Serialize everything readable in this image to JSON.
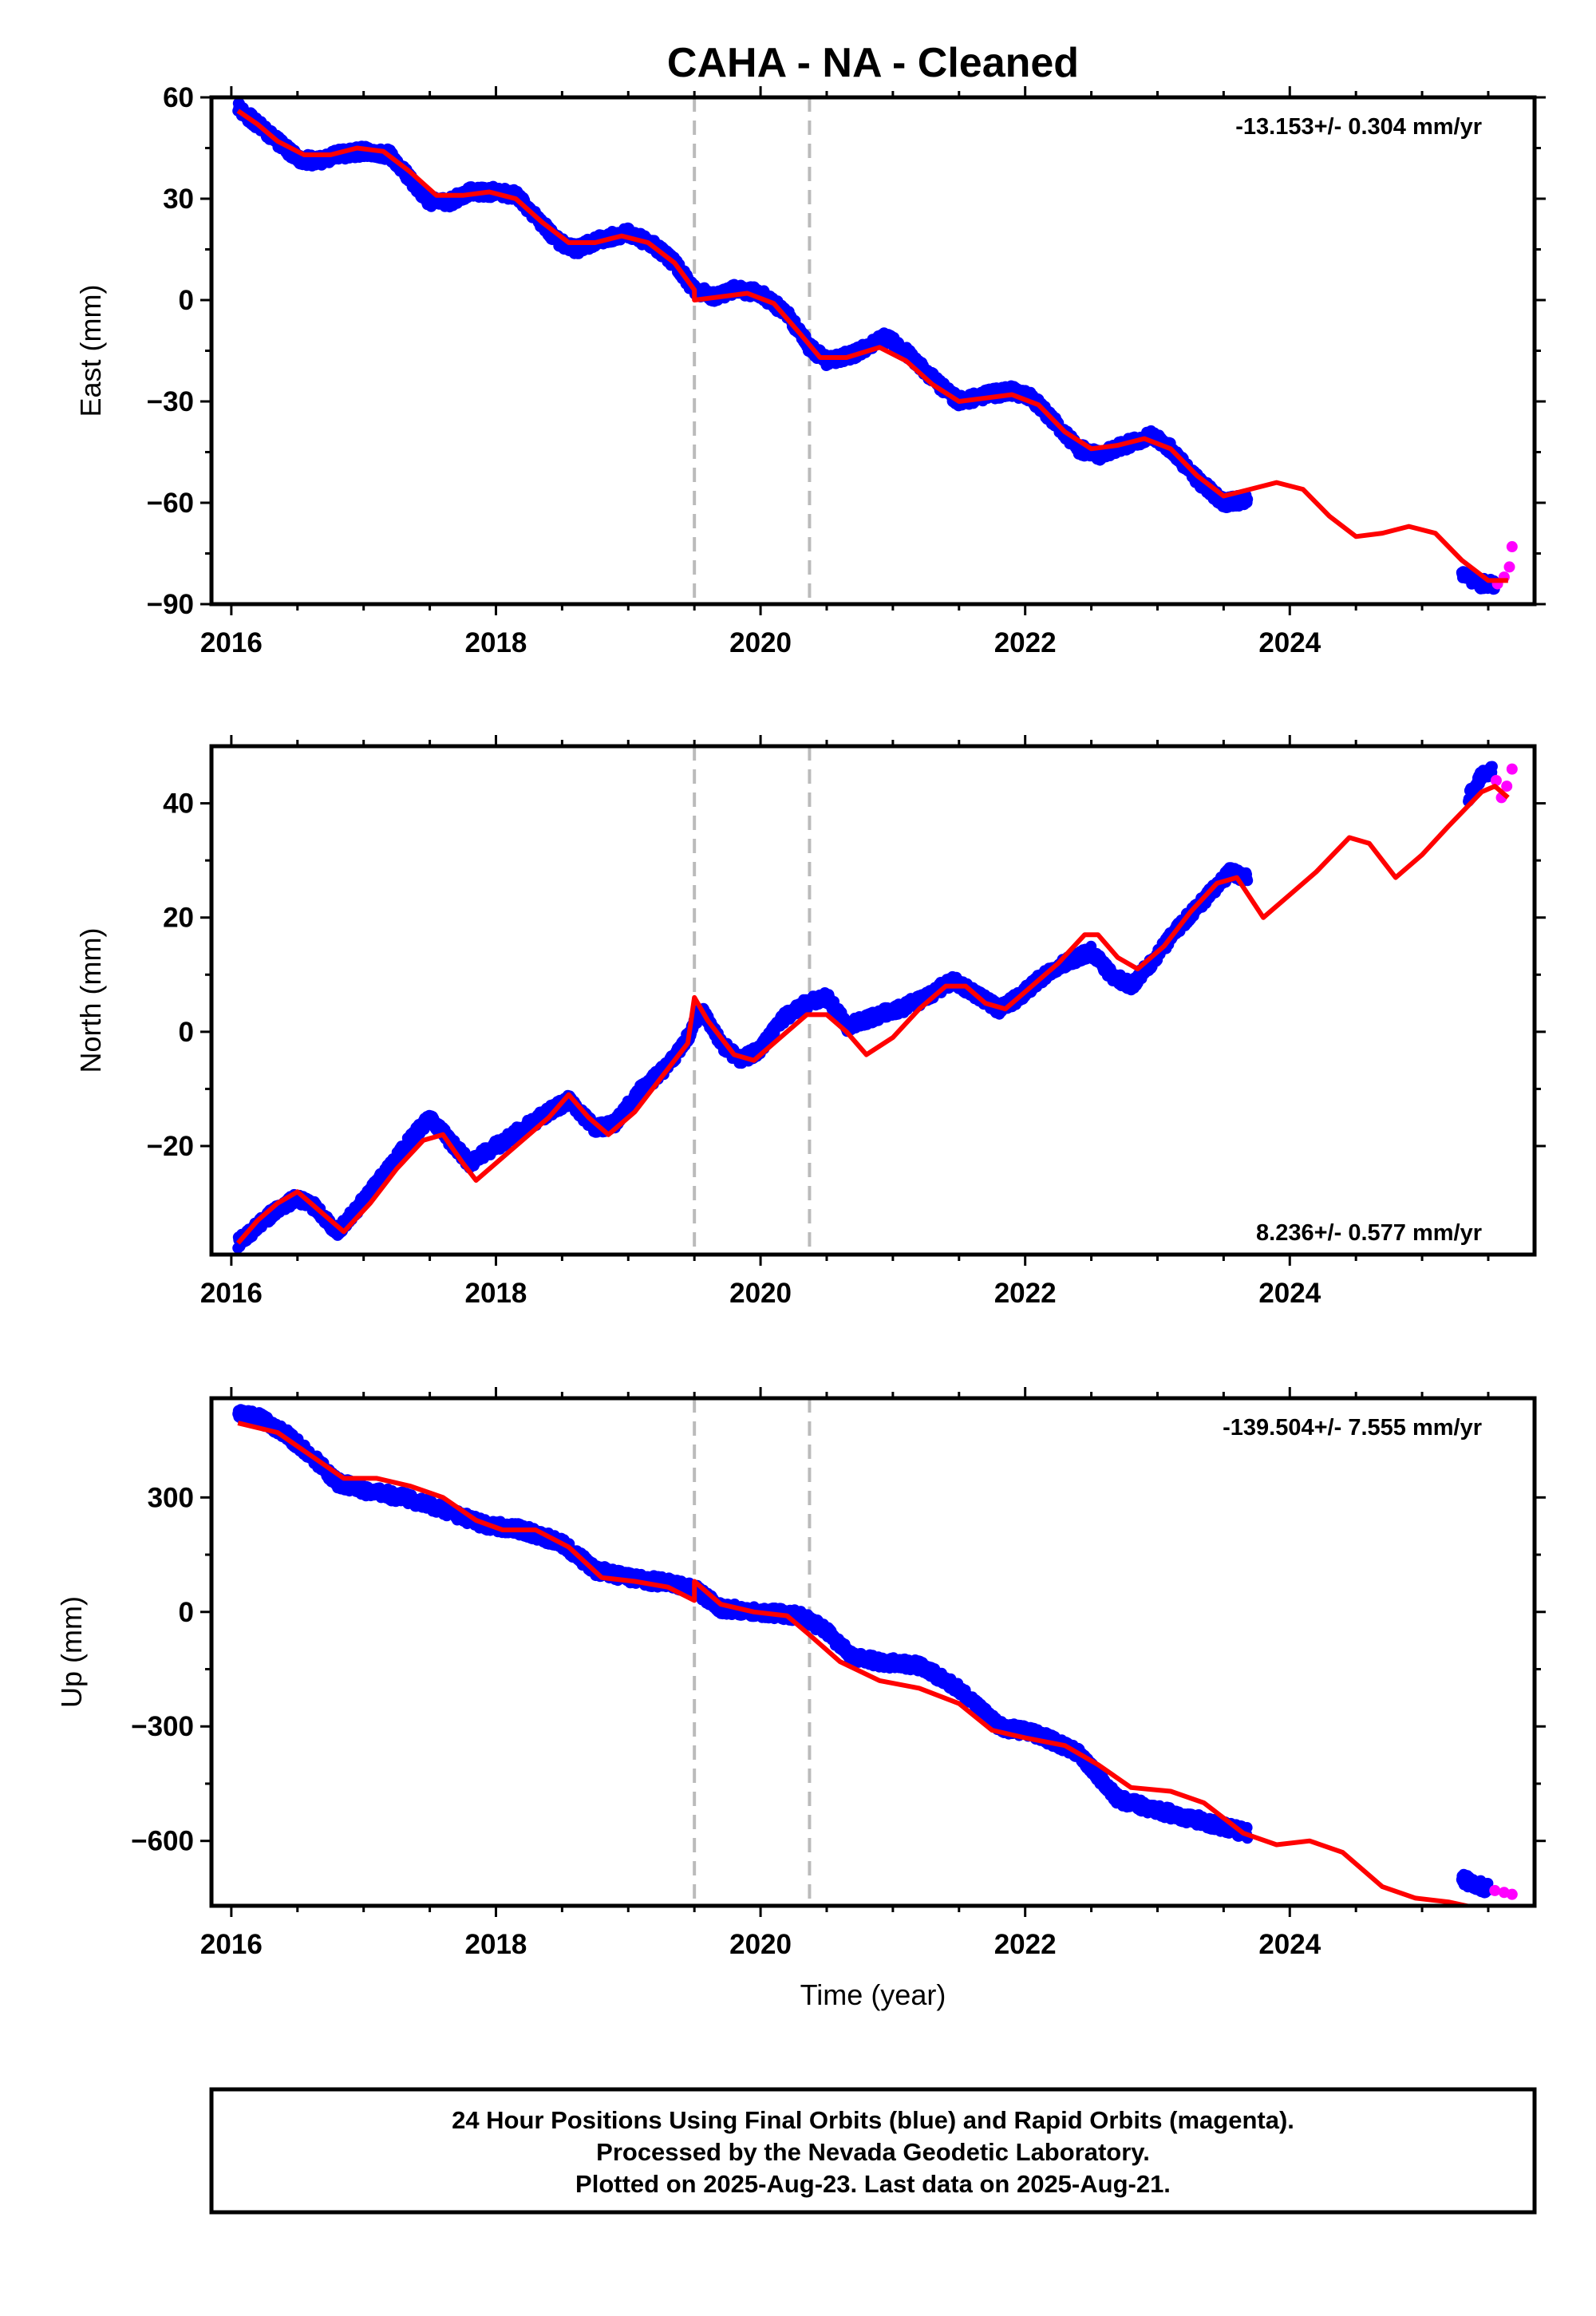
{
  "title": "CAHA  - NA - Cleaned",
  "colors": {
    "final_orbits": "#0000ff",
    "rapid_orbits": "#ff00ff",
    "model": "#ff0000",
    "event_lines": "#bbbbbb"
  },
  "footer": {
    "line1": "24 Hour Positions Using Final Orbits (blue) and Rapid Orbits (magenta).",
    "line2": "Processed by the Nevada Geodetic Laboratory.",
    "line3": "Plotted on 2025-Aug-23. Last data on 2025-Aug-21."
  },
  "chart_data": [
    {
      "type": "scatter",
      "panel": "east",
      "ylabel": "East (mm)",
      "xlabel": "",
      "xlim": [
        2015.85,
        2025.85
      ],
      "ylim": [
        -90,
        60
      ],
      "xticks": [
        2016,
        2018,
        2020,
        2022,
        2024
      ],
      "xtick_labels": [
        "2016",
        "2018",
        "2020",
        "2022",
        "2024"
      ],
      "yticks": [
        60,
        30,
        0,
        -30,
        -60,
        -90
      ],
      "ytick_labels": [
        "60",
        "30",
        "0",
        "−30",
        "−60",
        "−90"
      ],
      "rate_label": "-13.153+/- 0.304 mm/yr",
      "rate_position": "top-right",
      "event_lines": [
        2019.5,
        2020.37
      ],
      "final_orbit_series": [
        [
          2016.05,
          57
        ],
        [
          2016.2,
          52
        ],
        [
          2016.35,
          47
        ],
        [
          2016.5,
          42
        ],
        [
          2016.65,
          41
        ],
        [
          2016.8,
          43
        ],
        [
          2017.0,
          44
        ],
        [
          2017.2,
          43
        ],
        [
          2017.35,
          36
        ],
        [
          2017.5,
          29
        ],
        [
          2017.65,
          29
        ],
        [
          2017.8,
          32
        ],
        [
          2018.0,
          32
        ],
        [
          2018.15,
          31
        ],
        [
          2018.3,
          25
        ],
        [
          2018.45,
          18
        ],
        [
          2018.6,
          15
        ],
        [
          2018.8,
          18
        ],
        [
          2019.0,
          20
        ],
        [
          2019.2,
          16
        ],
        [
          2019.35,
          11
        ],
        [
          2019.5,
          3
        ],
        [
          2019.65,
          1
        ],
        [
          2019.8,
          3
        ],
        [
          2020.0,
          2
        ],
        [
          2020.2,
          -4
        ],
        [
          2020.37,
          -14
        ],
        [
          2020.5,
          -18
        ],
        [
          2020.7,
          -16
        ],
        [
          2020.95,
          -11
        ],
        [
          2021.15,
          -17
        ],
        [
          2021.35,
          -25
        ],
        [
          2021.5,
          -30
        ],
        [
          2021.7,
          -28
        ],
        [
          2021.9,
          -27
        ],
        [
          2022.05,
          -29
        ],
        [
          2022.2,
          -35
        ],
        [
          2022.4,
          -44
        ],
        [
          2022.55,
          -46
        ],
        [
          2022.75,
          -43
        ],
        [
          2022.95,
          -40
        ],
        [
          2023.1,
          -44
        ],
        [
          2023.3,
          -53
        ],
        [
          2023.5,
          -60
        ],
        [
          2023.68,
          -59
        ],
        [
          2025.3,
          -81
        ],
        [
          2025.45,
          -84
        ],
        [
          2025.55,
          -84
        ]
      ],
      "rapid_orbit_series": [
        [
          2025.57,
          -84
        ],
        [
          2025.62,
          -82
        ],
        [
          2025.66,
          -79
        ],
        [
          2025.68,
          -73
        ]
      ],
      "model_series": [
        [
          2016.05,
          56
        ],
        [
          2016.2,
          52
        ],
        [
          2016.35,
          47
        ],
        [
          2016.55,
          43
        ],
        [
          2016.75,
          43
        ],
        [
          2016.95,
          45
        ],
        [
          2017.15,
          44
        ],
        [
          2017.35,
          38
        ],
        [
          2017.55,
          31
        ],
        [
          2017.75,
          31
        ],
        [
          2017.95,
          32
        ],
        [
          2018.15,
          30
        ],
        [
          2018.35,
          23
        ],
        [
          2018.55,
          17
        ],
        [
          2018.75,
          17
        ],
        [
          2018.95,
          19
        ],
        [
          2019.15,
          17
        ],
        [
          2019.35,
          11
        ],
        [
          2019.5,
          3
        ],
        [
          2019.5,
          0
        ],
        [
          2019.7,
          1
        ],
        [
          2019.9,
          2
        ],
        [
          2020.1,
          -1
        ],
        [
          2020.3,
          -10
        ],
        [
          2020.45,
          -17
        ],
        [
          2020.65,
          -17
        ],
        [
          2020.9,
          -14
        ],
        [
          2021.1,
          -18
        ],
        [
          2021.3,
          -25
        ],
        [
          2021.5,
          -30
        ],
        [
          2021.7,
          -29
        ],
        [
          2021.9,
          -28
        ],
        [
          2022.1,
          -31
        ],
        [
          2022.3,
          -39
        ],
        [
          2022.5,
          -44
        ],
        [
          2022.7,
          -43
        ],
        [
          2022.9,
          -41
        ],
        [
          2023.1,
          -44
        ],
        [
          2023.3,
          -52
        ],
        [
          2023.5,
          -58
        ],
        [
          2023.7,
          -56
        ],
        [
          2023.9,
          -54
        ],
        [
          2024.1,
          -56
        ],
        [
          2024.3,
          -64
        ],
        [
          2024.5,
          -70
        ],
        [
          2024.7,
          -69
        ],
        [
          2024.9,
          -67
        ],
        [
          2025.1,
          -69
        ],
        [
          2025.3,
          -77
        ],
        [
          2025.5,
          -83
        ],
        [
          2025.65,
          -83
        ]
      ]
    },
    {
      "type": "scatter",
      "panel": "north",
      "ylabel": "North (mm)",
      "xlabel": "",
      "xlim": [
        2015.85,
        2025.85
      ],
      "ylim": [
        -39,
        50
      ],
      "xticks": [
        2016,
        2018,
        2020,
        2022,
        2024
      ],
      "xtick_labels": [
        "2016",
        "2018",
        "2020",
        "2022",
        "2024"
      ],
      "yticks": [
        40,
        20,
        0,
        -20
      ],
      "ytick_labels": [
        "40",
        "20",
        "0",
        "−20"
      ],
      "rate_label": "8.236+/- 0.577 mm/yr",
      "rate_position": "bottom-right",
      "event_lines": [
        2019.5,
        2020.37
      ],
      "final_orbit_series": [
        [
          2016.05,
          -37
        ],
        [
          2016.2,
          -34
        ],
        [
          2016.35,
          -31
        ],
        [
          2016.5,
          -29
        ],
        [
          2016.65,
          -31
        ],
        [
          2016.8,
          -35
        ],
        [
          2016.95,
          -31
        ],
        [
          2017.15,
          -25
        ],
        [
          2017.35,
          -19
        ],
        [
          2017.5,
          -15
        ],
        [
          2017.65,
          -19
        ],
        [
          2017.8,
          -23
        ],
        [
          2018.0,
          -20
        ],
        [
          2018.2,
          -17
        ],
        [
          2018.4,
          -14
        ],
        [
          2018.55,
          -12
        ],
        [
          2018.75,
          -17
        ],
        [
          2018.9,
          -16
        ],
        [
          2019.1,
          -10
        ],
        [
          2019.3,
          -6
        ],
        [
          2019.45,
          -1
        ],
        [
          2019.55,
          4
        ],
        [
          2019.7,
          -2
        ],
        [
          2019.85,
          -5
        ],
        [
          2020.0,
          -3
        ],
        [
          2020.15,
          2
        ],
        [
          2020.35,
          5
        ],
        [
          2020.5,
          6
        ],
        [
          2020.6,
          3
        ],
        [
          2020.65,
          1
        ],
        [
          2020.9,
          3
        ],
        [
          2021.05,
          4
        ],
        [
          2021.25,
          6
        ],
        [
          2021.45,
          9
        ],
        [
          2021.6,
          7
        ],
        [
          2021.8,
          4
        ],
        [
          2021.95,
          6
        ],
        [
          2022.1,
          9
        ],
        [
          2022.3,
          12
        ],
        [
          2022.5,
          14
        ],
        [
          2022.65,
          10
        ],
        [
          2022.8,
          8
        ],
        [
          2022.95,
          12
        ],
        [
          2023.15,
          18
        ],
        [
          2023.35,
          23
        ],
        [
          2023.55,
          28
        ],
        [
          2023.68,
          27
        ],
        [
          2025.35,
          41
        ],
        [
          2025.45,
          45
        ],
        [
          2025.53,
          46
        ]
      ],
      "rapid_orbit_series": [
        [
          2025.56,
          44
        ],
        [
          2025.6,
          41
        ],
        [
          2025.64,
          43
        ],
        [
          2025.68,
          46
        ]
      ],
      "model_series": [
        [
          2016.05,
          -37
        ],
        [
          2016.2,
          -33
        ],
        [
          2016.35,
          -30
        ],
        [
          2016.5,
          -28
        ],
        [
          2016.7,
          -32
        ],
        [
          2016.85,
          -35
        ],
        [
          2017.05,
          -30
        ],
        [
          2017.25,
          -24
        ],
        [
          2017.45,
          -19
        ],
        [
          2017.6,
          -18
        ],
        [
          2017.75,
          -23
        ],
        [
          2017.85,
          -26
        ],
        [
          2018.0,
          -23
        ],
        [
          2018.2,
          -19
        ],
        [
          2018.4,
          -15
        ],
        [
          2018.55,
          -11
        ],
        [
          2018.7,
          -15
        ],
        [
          2018.85,
          -18
        ],
        [
          2019.05,
          -14
        ],
        [
          2019.25,
          -8
        ],
        [
          2019.45,
          -2
        ],
        [
          2019.5,
          6
        ],
        [
          2019.6,
          2
        ],
        [
          2019.8,
          -4
        ],
        [
          2019.95,
          -5
        ],
        [
          2020.15,
          -1
        ],
        [
          2020.35,
          3
        ],
        [
          2020.5,
          3
        ],
        [
          2020.65,
          0
        ],
        [
          2020.8,
          -4
        ],
        [
          2021.0,
          -1
        ],
        [
          2021.2,
          4
        ],
        [
          2021.4,
          8
        ],
        [
          2021.55,
          8
        ],
        [
          2021.7,
          5
        ],
        [
          2021.85,
          4
        ],
        [
          2022.05,
          8
        ],
        [
          2022.25,
          12
        ],
        [
          2022.45,
          17
        ],
        [
          2022.55,
          17
        ],
        [
          2022.7,
          13
        ],
        [
          2022.85,
          11
        ],
        [
          2023.05,
          15
        ],
        [
          2023.25,
          21
        ],
        [
          2023.45,
          26
        ],
        [
          2023.6,
          27
        ],
        [
          2023.8,
          20
        ],
        [
          2024.0,
          24
        ],
        [
          2024.2,
          28
        ],
        [
          2024.45,
          34
        ],
        [
          2024.6,
          33
        ],
        [
          2024.8,
          27
        ],
        [
          2025.0,
          31
        ],
        [
          2025.2,
          36
        ],
        [
          2025.45,
          42
        ],
        [
          2025.55,
          43
        ],
        [
          2025.65,
          41
        ]
      ]
    },
    {
      "type": "scatter",
      "panel": "up",
      "ylabel": "Up (mm)",
      "xlabel": "Time (year)",
      "xlim": [
        2015.85,
        2025.85
      ],
      "ylim": [
        -770,
        560
      ],
      "xticks": [
        2016,
        2018,
        2020,
        2022,
        2024
      ],
      "xtick_labels": [
        "2016",
        "2018",
        "2020",
        "2022",
        "2024"
      ],
      "yticks": [
        300,
        0,
        -300,
        -600
      ],
      "ytick_labels": [
        "300",
        "0",
        "−300",
        "−600"
      ],
      "rate_label": "-139.504+/- 7.555 mm/yr",
      "rate_position": "top-right",
      "event_lines": [
        2019.5,
        2020.37
      ],
      "final_orbit_series": [
        [
          2016.05,
          520
        ],
        [
          2016.2,
          510
        ],
        [
          2016.4,
          470
        ],
        [
          2016.6,
          410
        ],
        [
          2016.8,
          340
        ],
        [
          2017.0,
          320
        ],
        [
          2017.3,
          300
        ],
        [
          2017.6,
          270
        ],
        [
          2017.9,
          230
        ],
        [
          2018.2,
          215
        ],
        [
          2018.5,
          180
        ],
        [
          2018.75,
          110
        ],
        [
          2019.0,
          90
        ],
        [
          2019.3,
          75
        ],
        [
          2019.5,
          60
        ],
        [
          2019.7,
          10
        ],
        [
          2020.0,
          0
        ],
        [
          2020.3,
          -10
        ],
        [
          2020.5,
          -50
        ],
        [
          2020.7,
          -120
        ],
        [
          2020.9,
          -130
        ],
        [
          2021.2,
          -140
        ],
        [
          2021.5,
          -200
        ],
        [
          2021.8,
          -300
        ],
        [
          2022.1,
          -320
        ],
        [
          2022.4,
          -370
        ],
        [
          2022.7,
          -490
        ],
        [
          2023.0,
          -520
        ],
        [
          2023.3,
          -545
        ],
        [
          2023.68,
          -580
        ],
        [
          2025.3,
          -700
        ],
        [
          2025.5,
          -725
        ]
      ],
      "rapid_orbit_series": [
        [
          2025.55,
          -730
        ],
        [
          2025.62,
          -735
        ],
        [
          2025.68,
          -740
        ]
      ],
      "model_series": [
        [
          2016.05,
          495
        ],
        [
          2016.35,
          470
        ],
        [
          2016.6,
          410
        ],
        [
          2016.85,
          350
        ],
        [
          2017.1,
          350
        ],
        [
          2017.35,
          330
        ],
        [
          2017.6,
          300
        ],
        [
          2017.85,
          240
        ],
        [
          2018.05,
          215
        ],
        [
          2018.3,
          215
        ],
        [
          2018.55,
          170
        ],
        [
          2018.8,
          90
        ],
        [
          2019.05,
          80
        ],
        [
          2019.3,
          65
        ],
        [
          2019.5,
          30
        ],
        [
          2019.5,
          80
        ],
        [
          2019.7,
          20
        ],
        [
          2019.95,
          0
        ],
        [
          2020.2,
          -10
        ],
        [
          2020.37,
          -60
        ],
        [
          2020.6,
          -130
        ],
        [
          2020.9,
          -180
        ],
        [
          2021.2,
          -200
        ],
        [
          2021.5,
          -240
        ],
        [
          2021.75,
          -310
        ],
        [
          2022.0,
          -330
        ],
        [
          2022.3,
          -350
        ],
        [
          2022.55,
          -400
        ],
        [
          2022.8,
          -460
        ],
        [
          2023.1,
          -470
        ],
        [
          2023.35,
          -500
        ],
        [
          2023.65,
          -580
        ],
        [
          2023.9,
          -610
        ],
        [
          2024.15,
          -600
        ],
        [
          2024.4,
          -630
        ],
        [
          2024.7,
          -720
        ],
        [
          2024.95,
          -750
        ],
        [
          2025.2,
          -760
        ],
        [
          2025.4,
          -775
        ]
      ]
    }
  ]
}
